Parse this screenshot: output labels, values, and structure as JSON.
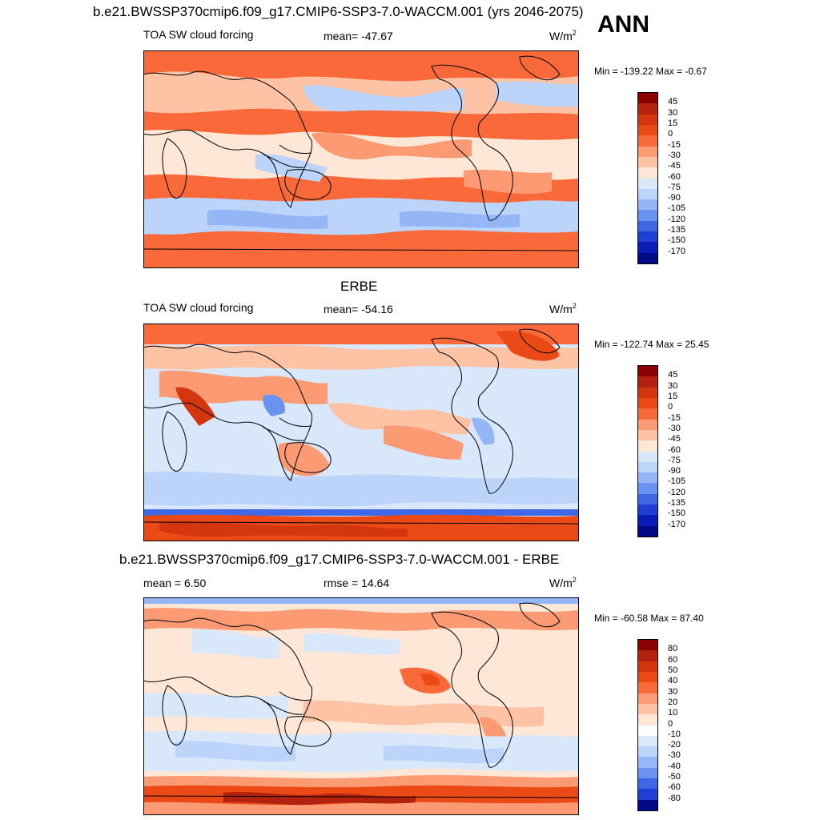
{
  "header": {
    "model_title": "b.e21.BWSSP370cmip6.f09_g17.CMIP6-SSP3-7.0-WACCM.001 (yrs 2046-2075)",
    "season": "ANN"
  },
  "chart_data": [
    {
      "type": "heatmap",
      "panel_title": "",
      "variable": "TOA SW cloud forcing",
      "stat_label": "mean= -47.67",
      "units_base": "W/m",
      "units_sup": "2",
      "minmax": "Min = -139.22 Max =  -0.67",
      "min": -139.22,
      "max": -0.67,
      "mean": -47.67,
      "levels": [
        "45",
        "30",
        "15",
        "0",
        "-15",
        "-30",
        "-45",
        "-60",
        "-75",
        "-90",
        "-105",
        "-120",
        "-135",
        "-150",
        "-170"
      ],
      "colors": [
        "#8b0000",
        "#b2220e",
        "#d43710",
        "#eb4a16",
        "#f9693a",
        "#fc9a74",
        "#fdc3a4",
        "#fee7d6",
        "#d9e7fb",
        "#bcd3fa",
        "#95b6f6",
        "#6a92f0",
        "#3f68e6",
        "#1f3ed6",
        "#0a1cb8",
        "#000a87"
      ]
    },
    {
      "type": "heatmap",
      "panel_title": "ERBE",
      "variable": "TOA SW cloud forcing",
      "stat_label": "mean= -54.16",
      "units_base": "W/m",
      "units_sup": "2",
      "minmax": "Min = -122.74 Max =  25.45",
      "min": -122.74,
      "max": 25.45,
      "mean": -54.16,
      "levels": [
        "45",
        "30",
        "15",
        "0",
        "-15",
        "-30",
        "-45",
        "-60",
        "-75",
        "-90",
        "-105",
        "-120",
        "-135",
        "-150",
        "-170"
      ],
      "colors": [
        "#8b0000",
        "#b2220e",
        "#d43710",
        "#eb4a16",
        "#f9693a",
        "#fc9a74",
        "#fdc3a4",
        "#fee7d6",
        "#d9e7fb",
        "#bcd3fa",
        "#95b6f6",
        "#6a92f0",
        "#3f68e6",
        "#1f3ed6",
        "#0a1cb8",
        "#000a87"
      ]
    },
    {
      "type": "heatmap",
      "panel_title": "b.e21.BWSSP370cmip6.f09_g17.CMIP6-SSP3-7.0-WACCM.001 - ERBE",
      "variable": "",
      "stat_label": "mean =   6.50",
      "rmse_label": "rmse =  14.64",
      "units_base": "W/m",
      "units_sup": "2",
      "minmax": "Min = -60.58 Max =  87.40",
      "min": -60.58,
      "max": 87.4,
      "mean": 6.5,
      "rmse": 14.64,
      "levels": [
        "80",
        "60",
        "50",
        "40",
        "30",
        "20",
        "10",
        "0",
        "-10",
        "-20",
        "-30",
        "-40",
        "-50",
        "-60",
        "-80"
      ],
      "colors": [
        "#8b0000",
        "#b2220e",
        "#d43710",
        "#eb4a16",
        "#f9693a",
        "#fc9a74",
        "#fdc3a4",
        "#fee7d6",
        "#ffffff",
        "#d9e7fb",
        "#bcd3fa",
        "#95b6f6",
        "#6a92f0",
        "#3f68e6",
        "#1f3ed6",
        "#000a87"
      ]
    }
  ]
}
